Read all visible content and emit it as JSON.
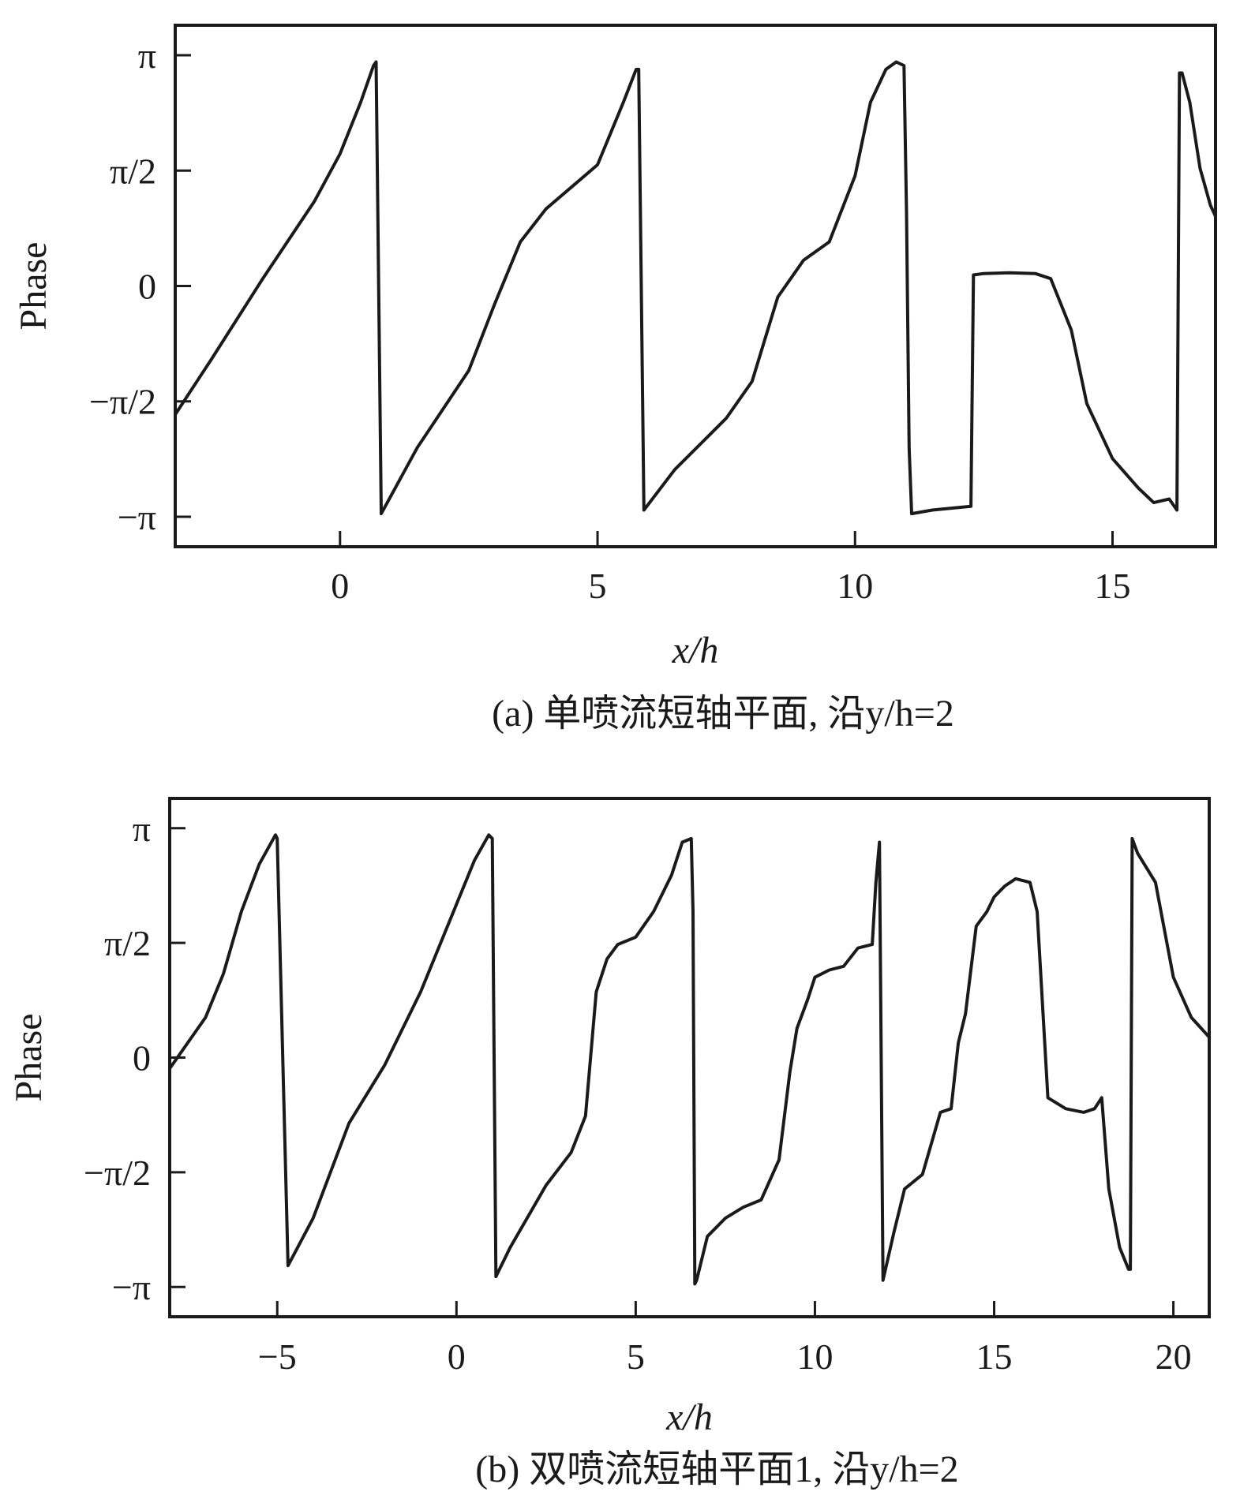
{
  "chart_data": [
    {
      "type": "line",
      "panel": "a",
      "caption": "(a) 单喷流短轴平面, 沿y/h=2",
      "xlabel": "x/h",
      "ylabel": "Phase",
      "xlim": [
        -3.2,
        17
      ],
      "ylim": [
        -3.55,
        3.55
      ],
      "xticks": [
        0,
        5,
        10,
        15
      ],
      "xtick_labels": [
        "0",
        "5",
        "10",
        "15"
      ],
      "yticks": [
        3.1416,
        1.5708,
        0,
        -1.5708,
        -3.1416
      ],
      "ytick_labels": [
        "π",
        "π/2",
        "0",
        "−π/2",
        "−π"
      ],
      "series": [
        {
          "x": [
            -3.2,
            -2.5,
            -1.5,
            -0.5,
            0.0,
            0.4,
            0.65,
            0.7,
            0.8,
            1.5,
            2.5,
            3.0,
            3.5,
            4.0,
            4.5,
            5.0,
            5.5,
            5.75,
            5.8,
            5.9,
            6.5,
            7.5,
            8.0,
            8.5,
            9.0,
            9.5,
            10.0,
            10.3,
            10.6,
            10.8,
            10.95,
            11.0,
            11.05,
            11.1,
            11.5,
            12.25,
            12.3,
            12.5,
            13.0,
            13.5,
            13.8,
            14.2,
            14.5,
            15.0,
            15.5,
            15.8,
            16.1,
            16.25,
            16.3,
            16.35,
            16.5,
            16.7,
            16.9,
            17.0
          ],
          "y": [
            -1.75,
            -1.0,
            0.1,
            1.15,
            1.8,
            2.5,
            3.0,
            3.05,
            -3.1,
            -2.2,
            -1.15,
            -0.25,
            0.6,
            1.05,
            1.35,
            1.65,
            2.5,
            2.95,
            2.95,
            -3.05,
            -2.5,
            -1.8,
            -1.3,
            -0.15,
            0.35,
            0.6,
            1.5,
            2.5,
            2.95,
            3.05,
            3.0,
            1.0,
            -2.2,
            -3.1,
            -3.05,
            -3.0,
            0.15,
            0.17,
            0.18,
            0.17,
            0.1,
            -0.6,
            -1.6,
            -2.35,
            -2.75,
            -2.95,
            -2.9,
            -3.05,
            2.9,
            2.9,
            2.5,
            1.6,
            1.1,
            0.95
          ]
        }
      ]
    },
    {
      "type": "line",
      "panel": "b",
      "caption": "(b) 双喷流短轴平面1, 沿y/h=2",
      "xlabel": "x/h",
      "ylabel": "Phase",
      "xlim": [
        -8,
        21
      ],
      "ylim": [
        -3.55,
        3.55
      ],
      "xticks": [
        -5,
        0,
        5,
        10,
        15,
        20
      ],
      "xtick_labels": [
        "−5",
        "0",
        "5",
        "10",
        "15",
        "20"
      ],
      "yticks": [
        3.1416,
        1.5708,
        0,
        -1.5708,
        -3.1416
      ],
      "ytick_labels": [
        "π",
        "π/2",
        "0",
        "−π/2",
        "−π"
      ],
      "series": [
        {
          "x": [
            -8.0,
            -7.5,
            -7.0,
            -6.5,
            -6.0,
            -5.5,
            -5.05,
            -5.0,
            -4.7,
            -4.0,
            -3.0,
            -2.0,
            -1.0,
            0.0,
            0.5,
            0.9,
            1.0,
            1.1,
            1.5,
            2.5,
            3.2,
            3.6,
            3.9,
            4.2,
            4.5,
            5.0,
            5.5,
            6.0,
            6.3,
            6.55,
            6.6,
            6.65,
            6.7,
            7.0,
            7.5,
            8.0,
            8.5,
            9.0,
            9.3,
            9.5,
            9.8,
            10.0,
            10.4,
            10.8,
            11.2,
            11.6,
            11.7,
            11.8,
            11.9,
            12.2,
            12.5,
            13.0,
            13.5,
            13.8,
            14.0,
            14.2,
            14.5,
            14.8,
            15.0,
            15.3,
            15.6,
            16.0,
            16.2,
            16.5,
            17.0,
            17.5,
            17.8,
            18.0,
            18.2,
            18.5,
            18.75,
            18.8,
            18.85,
            19.0,
            19.5,
            20.0,
            20.5,
            21.0
          ],
          "y": [
            -0.15,
            0.2,
            0.55,
            1.15,
            2.0,
            2.65,
            3.05,
            3.0,
            -2.85,
            -2.2,
            -0.9,
            -0.1,
            0.9,
            2.1,
            2.7,
            3.05,
            3.0,
            -3.0,
            -2.6,
            -1.75,
            -1.3,
            -0.8,
            0.9,
            1.35,
            1.55,
            1.65,
            2.0,
            2.5,
            2.95,
            3.0,
            2.0,
            -3.1,
            -3.05,
            -2.45,
            -2.2,
            -2.05,
            -1.95,
            -1.4,
            -0.2,
            0.4,
            0.8,
            1.1,
            1.2,
            1.25,
            1.5,
            1.55,
            2.4,
            2.95,
            -3.05,
            -2.4,
            -1.8,
            -1.6,
            -0.75,
            -0.7,
            0.2,
            0.6,
            1.8,
            2.0,
            2.2,
            2.35,
            2.45,
            2.4,
            2.0,
            -0.55,
            -0.7,
            -0.75,
            -0.7,
            -0.55,
            -1.8,
            -2.6,
            -2.9,
            -2.9,
            3.0,
            2.8,
            2.4,
            1.1,
            0.55,
            0.28
          ]
        }
      ]
    }
  ]
}
